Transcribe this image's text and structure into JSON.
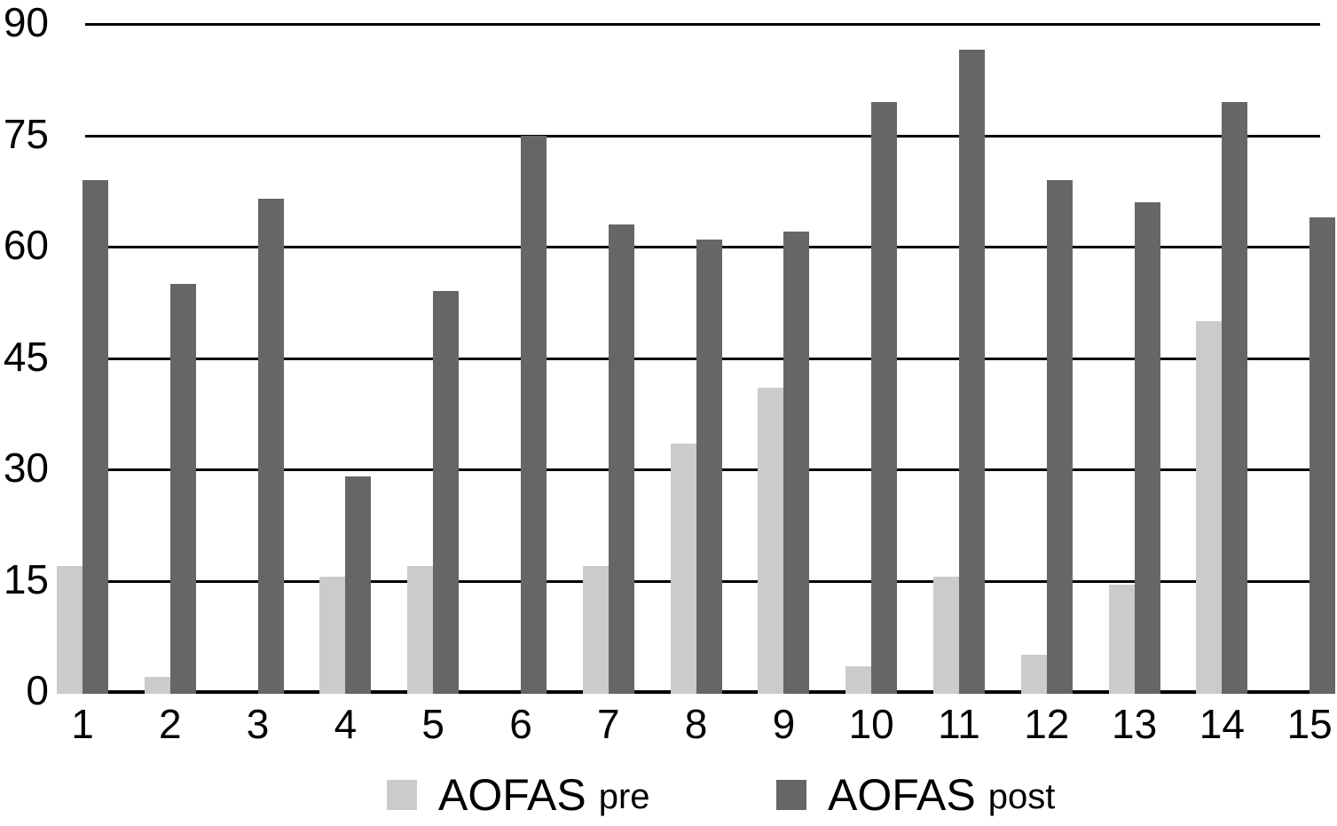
{
  "chart_data": {
    "type": "bar",
    "grouped": true,
    "title": "",
    "xlabel": "",
    "ylabel": "",
    "categories": [
      "1",
      "2",
      "3",
      "4",
      "5",
      "6",
      "7",
      "8",
      "9",
      "10",
      "11",
      "12",
      "13",
      "14",
      "15"
    ],
    "series": [
      {
        "name": "AOFAS pre",
        "color": "#cbcbcb",
        "values": [
          17,
          2,
          0,
          15.5,
          17,
          0,
          17,
          33.5,
          41,
          3.5,
          15.5,
          5,
          14.5,
          50,
          0
        ]
      },
      {
        "name": "AOFAS post",
        "color": "#666666",
        "values": [
          69,
          55,
          66.5,
          29,
          54,
          75,
          63,
          61,
          62,
          79.5,
          86.5,
          69,
          66,
          79.5,
          64
        ]
      }
    ],
    "ylim": [
      0,
      90
    ],
    "yticks": [
      0,
      15,
      30,
      45,
      60,
      75,
      90
    ],
    "grid": "horizontal",
    "gridline_color": "#000000",
    "legend_position": "bottom",
    "legend": [
      {
        "label": "AOFAS",
        "sub": "pre",
        "color": "#cbcbcb"
      },
      {
        "label": "AOFAS",
        "sub": "post",
        "color": "#666666"
      }
    ]
  }
}
